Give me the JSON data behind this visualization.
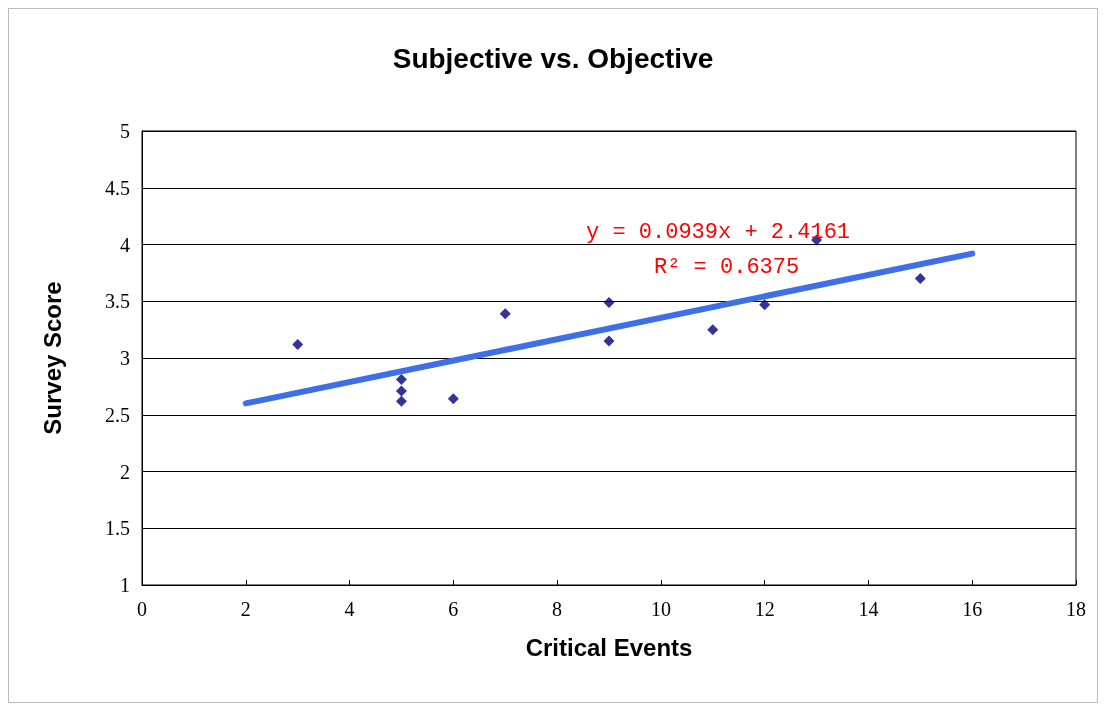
{
  "chart_data": {
    "type": "scatter",
    "title": "Subjective vs. Objective",
    "xlabel": "Critical Events",
    "ylabel": "Survey Score",
    "series": [
      {
        "color": "#000080",
        "marker": "diamond",
        "x": [
          3,
          5,
          5,
          5,
          6,
          7,
          9,
          9,
          11,
          12,
          13,
          15
        ],
        "values": [
          3.12,
          2.81,
          2.71,
          2.62,
          2.64,
          3.39,
          3.49,
          3.15,
          3.25,
          3.47,
          4.04,
          3.7
        ]
      },
      {
        "type": "line",
        "color": "#3f6fe8",
        "marker": "none",
        "x": [
          2,
          16
        ],
        "values": [
          2.6,
          3.92
        ]
      }
    ],
    "xlim": [
      0,
      18
    ],
    "xticks": [
      0,
      2,
      4,
      6,
      8,
      10,
      12,
      14,
      16,
      18
    ],
    "ylim": [
      1,
      5
    ],
    "yticks": [
      1,
      1.5,
      2,
      2.5,
      3,
      3.5,
      4,
      4.5,
      5
    ],
    "grid": "y",
    "annotations": [
      "y = 0.0939x + 2.4161",
      "R² = 0.6375"
    ]
  }
}
